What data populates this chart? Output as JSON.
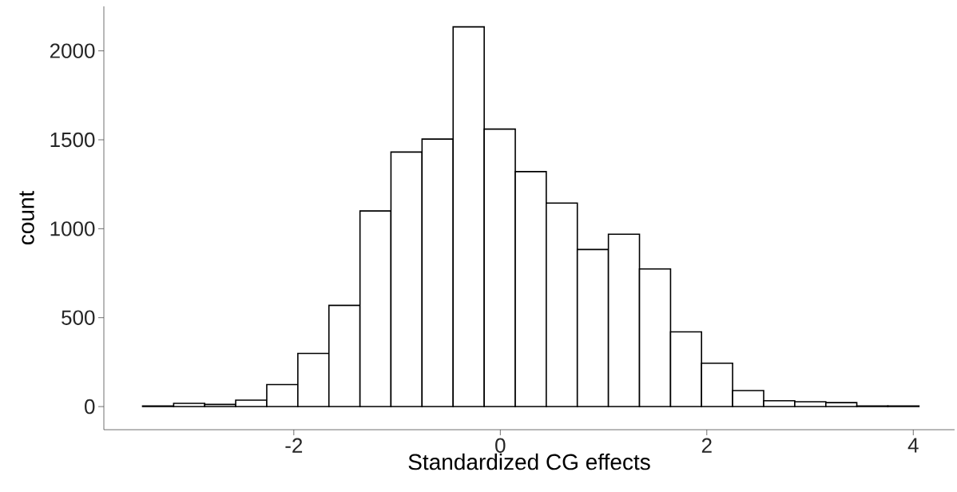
{
  "chart_data": {
    "type": "histogram",
    "xlabel": "Standardized CG effects",
    "ylabel": "count",
    "bins": [
      -3.465,
      -3.164,
      -2.863,
      -2.563,
      -2.262,
      -1.961,
      -1.66,
      -1.359,
      -1.059,
      -0.758,
      -0.457,
      -0.156,
      0.145,
      0.445,
      0.746,
      1.047,
      1.348,
      1.649,
      1.949,
      2.25,
      2.551,
      2.852,
      3.153,
      3.453,
      3.754,
      4.055
    ],
    "values": [
      3,
      18,
      12,
      36,
      124,
      299,
      569,
      1100,
      1431,
      1504,
      2135,
      1560,
      1321,
      1144,
      883,
      969,
      774,
      420,
      244,
      90,
      33,
      27,
      22,
      3,
      3
    ],
    "color": "#ffffff",
    "xlim": [
      -3.84,
      4.4
    ],
    "ylim": [
      -130,
      2250
    ],
    "xticks": [
      -2,
      0,
      2,
      4
    ],
    "yticks": [
      0,
      500,
      1000,
      1500,
      2000
    ]
  }
}
